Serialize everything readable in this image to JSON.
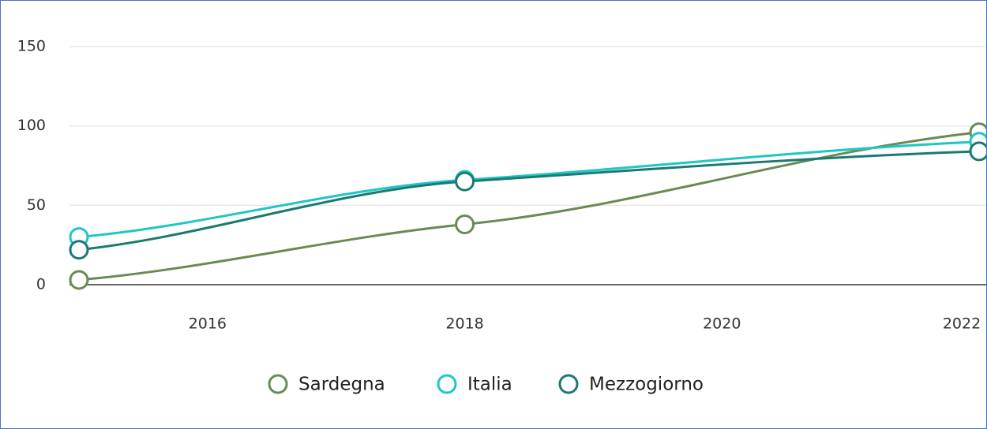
{
  "chart_data": {
    "type": "line",
    "x": [
      2015,
      2018,
      2022
    ],
    "series": [
      {
        "name": "Sardegna",
        "color": "#6a8a54",
        "values": [
          3,
          38,
          96
        ]
      },
      {
        "name": "Italia",
        "color": "#1fc6c6",
        "values": [
          30,
          66,
          90
        ]
      },
      {
        "name": "Mezzogiorno",
        "color": "#1a7a72",
        "values": [
          22,
          65,
          84
        ]
      }
    ],
    "xlim": [
      2015,
      2022
    ],
    "xticks": [
      2016,
      2018,
      2020,
      2022
    ],
    "ylim": [
      0,
      150
    ],
    "yticks": [
      0,
      50,
      100,
      150
    ],
    "grid": true
  }
}
